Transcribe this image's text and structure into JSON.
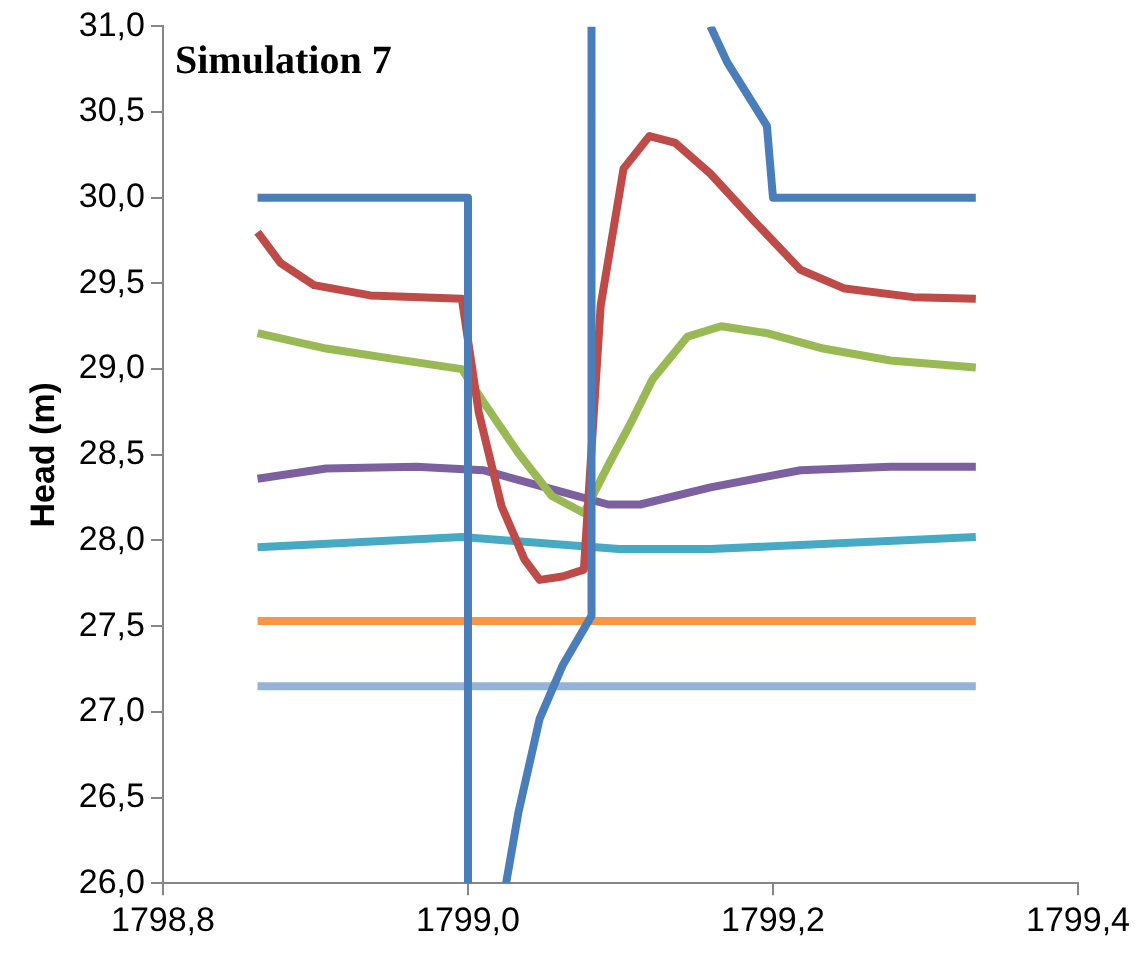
{
  "chart_data": {
    "type": "line",
    "title": "Simulation 7",
    "ylabel": "Head (m)",
    "grid": false,
    "legend": false,
    "marker": "none",
    "line_style": "solid",
    "xlim": [
      1798.8,
      1799.4
    ],
    "xticks": [
      {
        "value": 1798.8,
        "label": "1798,8"
      },
      {
        "value": 1799.0,
        "label": "1799,0"
      },
      {
        "value": 1799.2,
        "label": "1799,2"
      },
      {
        "value": 1799.4,
        "label": "1799,4"
      }
    ],
    "ylim": [
      26.0,
      31.0
    ],
    "yticks": [
      {
        "value": 26.0,
        "label": "26,0"
      },
      {
        "value": 26.5,
        "label": "26,5"
      },
      {
        "value": 27.0,
        "label": "27,0"
      },
      {
        "value": 27.5,
        "label": "27,5"
      },
      {
        "value": 28.0,
        "label": "28,0"
      },
      {
        "value": 28.5,
        "label": "28,5"
      },
      {
        "value": 29.0,
        "label": "29,0"
      },
      {
        "value": 29.5,
        "label": "29,5"
      },
      {
        "value": 30.0,
        "label": "30,0"
      },
      {
        "value": 30.5,
        "label": "30,5"
      },
      {
        "value": 31.0,
        "label": "31,0"
      }
    ],
    "series": [
      {
        "color": "#4a7ebb",
        "x": [
          1798.862,
          1799.0,
          1799.0,
          null,
          1799.025,
          1799.033,
          1799.047,
          1799.062,
          1799.081,
          1799.081,
          null,
          1799.159,
          1799.17,
          1799.196,
          1799.2,
          1799.333
        ],
        "values": [
          30.0,
          30.0,
          26.0,
          null,
          26.0,
          26.41,
          26.96,
          27.27,
          27.56,
          31.0,
          null,
          31.0,
          30.79,
          30.42,
          30.0,
          30.0
        ]
      },
      {
        "color": "#be4b48",
        "x": [
          1798.862,
          1798.877,
          1798.899,
          1798.936,
          1798.996,
          1799.007,
          1799.022,
          1799.037,
          1799.047,
          1799.062,
          1799.076,
          1799.087,
          1799.102,
          1799.119,
          1799.136,
          1799.159,
          1799.188,
          1799.218,
          1799.247,
          1799.292,
          1799.333
        ],
        "values": [
          29.8,
          29.62,
          29.49,
          29.43,
          29.41,
          28.75,
          28.2,
          27.89,
          27.77,
          27.79,
          27.83,
          29.37,
          30.17,
          30.36,
          30.32,
          30.14,
          29.86,
          29.58,
          29.47,
          29.42,
          29.41
        ]
      },
      {
        "color": "#98b954",
        "x": [
          1798.862,
          1798.907,
          1798.951,
          1798.996,
          1799.01,
          1799.033,
          1799.055,
          1799.076,
          1799.092,
          1799.107,
          1799.121,
          1799.144,
          1799.166,
          1799.196,
          1799.233,
          1799.277,
          1799.333
        ],
        "values": [
          29.21,
          29.12,
          29.06,
          29.0,
          28.81,
          28.51,
          28.26,
          28.16,
          28.44,
          28.69,
          28.94,
          29.19,
          29.25,
          29.21,
          29.12,
          29.05,
          29.01
        ]
      },
      {
        "color": "#7d60a0",
        "x": [
          1798.862,
          1798.907,
          1798.966,
          1799.01,
          1799.055,
          1799.092,
          1799.113,
          1799.159,
          1799.218,
          1799.277,
          1799.333
        ],
        "values": [
          28.36,
          28.42,
          28.43,
          28.41,
          28.3,
          28.21,
          28.21,
          28.31,
          28.41,
          28.43,
          28.43
        ]
      },
      {
        "color": "#46aac5",
        "x": [
          1798.862,
          1798.996,
          1799.099,
          1799.159,
          1799.333
        ],
        "values": [
          27.96,
          28.02,
          27.95,
          27.95,
          28.02
        ]
      },
      {
        "color": "#f79646",
        "x": [
          1798.862,
          1799.333
        ],
        "values": [
          27.53,
          27.53
        ]
      },
      {
        "color": "#95b3d7",
        "x": [
          1798.862,
          1799.333
        ],
        "values": [
          27.15,
          27.15
        ]
      }
    ]
  }
}
